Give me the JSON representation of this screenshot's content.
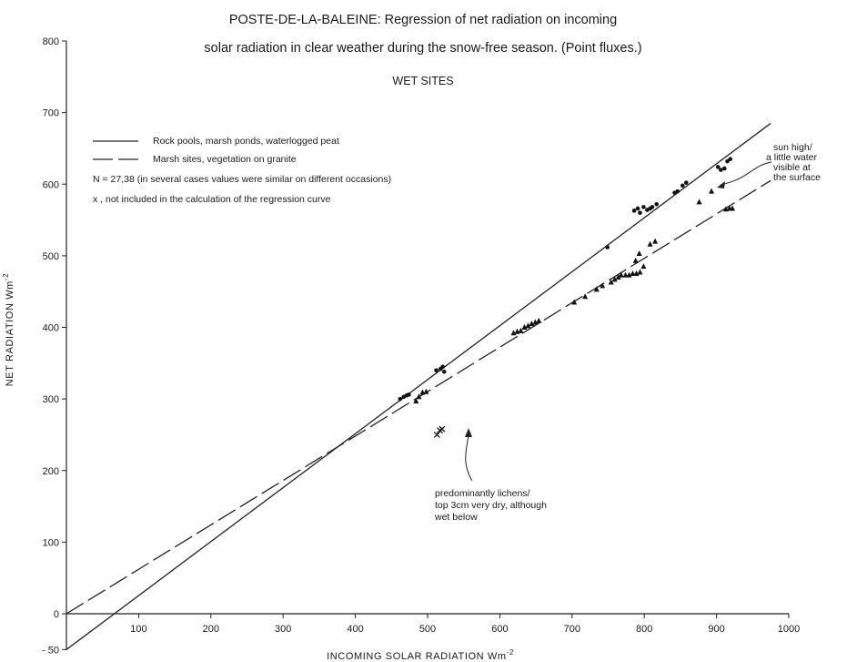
{
  "chart_data": {
    "type": "scatter",
    "title_line1": "POSTE-DE-LA-BALEINE: Regression of net radiation on incoming",
    "title_line2": "solar radiation in clear weather during the snow-free season. (Point fluxes.)",
    "subtitle": "WET SITES",
    "xlabel": "INCOMING SOLAR RADIATION Wm",
    "xlabel_sup": "-2",
    "ylabel": "NET RADIATION Wm",
    "ylabel_sup": "-2",
    "xlim": [
      0,
      1000
    ],
    "ylim": [
      -50,
      800
    ],
    "x_ticks": [
      {
        "value": 100,
        "label": "100"
      },
      {
        "value": 200,
        "label": "200"
      },
      {
        "value": 300,
        "label": "300"
      },
      {
        "value": 400,
        "label": "400"
      },
      {
        "value": 500,
        "label": "500"
      },
      {
        "value": 600,
        "label": "600"
      },
      {
        "value": 700,
        "label": "700"
      },
      {
        "value": 800,
        "label": "800"
      },
      {
        "value": 900,
        "label": "900"
      },
      {
        "value": 1000,
        "label": "1000"
      }
    ],
    "y_ticks": [
      {
        "value": -50,
        "label": "- 50"
      },
      {
        "value": 0,
        "label": "0"
      },
      {
        "value": 100,
        "label": "100"
      },
      {
        "value": 200,
        "label": "200"
      },
      {
        "value": 300,
        "label": "300"
      },
      {
        "value": 400,
        "label": "400"
      },
      {
        "value": 500,
        "label": "500"
      },
      {
        "value": 600,
        "label": "600"
      },
      {
        "value": 700,
        "label": "700"
      },
      {
        "value": 800,
        "label": "800"
      }
    ],
    "legend": {
      "solid": "Rock pools, marsh ponds, waterlogged peat",
      "dashed": "Marsh sites, vegetation on granite",
      "note_n": "N = 27,38 (in several cases values were similar on different occasions)",
      "note_x": "x , not included in the calculation of the regression curve"
    },
    "regression_lines": [
      {
        "style": "solid",
        "points": [
          [
            0,
            -50
          ],
          [
            975,
            685
          ]
        ]
      },
      {
        "style": "dashed",
        "points": [
          [
            0,
            0
          ],
          [
            975,
            605
          ]
        ]
      }
    ],
    "series": [
      {
        "marker": "circle",
        "points": [
          [
            462,
            300
          ],
          [
            467,
            303
          ],
          [
            471,
            305
          ],
          [
            474,
            306
          ],
          [
            512,
            340
          ],
          [
            518,
            342
          ],
          [
            521,
            345
          ],
          [
            523,
            338
          ],
          [
            749,
            512
          ],
          [
            786,
            563
          ],
          [
            791,
            566
          ],
          [
            794,
            560
          ],
          [
            799,
            568
          ],
          [
            804,
            564
          ],
          [
            808,
            566
          ],
          [
            811,
            568
          ],
          [
            817,
            572
          ],
          [
            842,
            588
          ],
          [
            846,
            590
          ],
          [
            853,
            598
          ],
          [
            858,
            602
          ],
          [
            902,
            624
          ],
          [
            906,
            620
          ],
          [
            911,
            622
          ],
          [
            915,
            632
          ],
          [
            919,
            635
          ]
        ]
      },
      {
        "marker": "triangle",
        "points": [
          [
            484,
            297
          ],
          [
            488,
            303
          ],
          [
            493,
            309
          ],
          [
            498,
            310
          ],
          [
            619,
            392
          ],
          [
            624,
            394
          ],
          [
            629,
            395
          ],
          [
            634,
            400
          ],
          [
            639,
            402
          ],
          [
            644,
            405
          ],
          [
            649,
            407
          ],
          [
            654,
            409
          ],
          [
            703,
            435
          ],
          [
            718,
            443
          ],
          [
            734,
            453
          ],
          [
            742,
            458
          ],
          [
            754,
            463
          ],
          [
            759,
            467
          ],
          [
            764,
            470
          ],
          [
            768,
            473
          ],
          [
            774,
            473
          ],
          [
            779,
            473
          ],
          [
            784,
            475
          ],
          [
            789,
            475
          ],
          [
            794,
            477
          ],
          [
            799,
            485
          ],
          [
            788,
            493
          ],
          [
            793,
            503
          ],
          [
            808,
            516
          ],
          [
            815,
            520
          ],
          [
            876,
            575
          ],
          [
            893,
            590
          ],
          [
            913,
            565
          ],
          [
            918,
            566
          ],
          [
            922,
            566
          ]
        ]
      },
      {
        "marker": "x",
        "points": [
          [
            513,
            250
          ],
          [
            517,
            256
          ],
          [
            520,
            258
          ]
        ]
      }
    ],
    "annotations": [
      {
        "lines": [
          "sun high/",
          "a little water",
          "visible at",
          "the surface"
        ]
      },
      {
        "lines": [
          "predominantly lichens/",
          "top 3cm very dry, although",
          "wet below"
        ]
      }
    ]
  }
}
